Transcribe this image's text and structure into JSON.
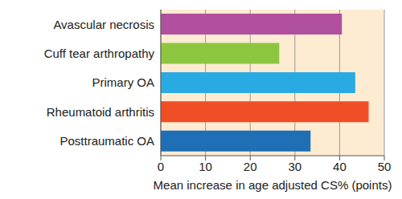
{
  "chart_data": {
    "type": "bar",
    "orientation": "horizontal",
    "categories": [
      "Avascular necrosis",
      "Cuff tear arthropathy",
      "Primary OA",
      "Rheumatoid arthritis",
      "Posttraumatic OA"
    ],
    "values": [
      40.5,
      26.5,
      43.5,
      46.5,
      33.5
    ],
    "colors": [
      "#b0509f",
      "#8cc63f",
      "#2aaae2",
      "#f04e27",
      "#1f6fb6"
    ],
    "x_label": "Mean increase in age adjusted CS% (points)",
    "xlim": [
      0,
      50
    ],
    "xticks": [
      0,
      10,
      20,
      30,
      40,
      50
    ],
    "grid": true
  }
}
